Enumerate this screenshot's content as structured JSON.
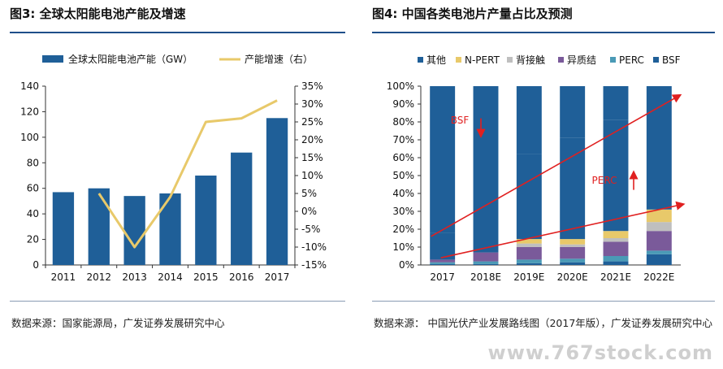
{
  "left": {
    "title": "图3:  全球太阳能电池产能及增速",
    "source": "数据来源：国家能源局，广发证券发展研究中心",
    "chart_data": {
      "type": "bar+line",
      "categories": [
        "2011",
        "2012",
        "2013",
        "2014",
        "2015",
        "2016",
        "2017"
      ],
      "series": [
        {
          "name": "全球太阳能电池产能（GW）",
          "type": "bar",
          "axis": "left",
          "values": [
            57,
            60,
            54,
            56,
            70,
            88,
            115
          ],
          "color": "#1f5f98"
        },
        {
          "name": "产能增速（右）",
          "type": "line",
          "axis": "right",
          "values": [
            null,
            0.05,
            -0.1,
            0.04,
            0.25,
            0.26,
            0.31
          ],
          "color": "#e8c96a"
        }
      ],
      "ylim": [
        0,
        140
      ],
      "yticks": [
        "0",
        "20",
        "40",
        "60",
        "80",
        "100",
        "120",
        "140"
      ],
      "y2lim": [
        -0.15,
        0.35
      ],
      "y2ticks": [
        "-15%",
        "-10%",
        "-5%",
        "0%",
        "5%",
        "10%",
        "15%",
        "20%",
        "25%",
        "30%",
        "35%"
      ],
      "legend": "top"
    }
  },
  "right": {
    "title": "图4:  中国各类电池片产量占比及预测",
    "source": "数据来源：  中国光伏产业发展路线图（2017年版），广发证券发展研究中心",
    "chart_data": {
      "type": "stacked-bar-percent",
      "categories": [
        "2017",
        "2018E",
        "2019E",
        "2020E",
        "2021E",
        "2022E"
      ],
      "series": [
        {
          "name": "BSF",
          "color": "#1f5f98",
          "values": [
            0.005,
            0.005,
            0.01,
            0.015,
            0.02,
            0.06
          ]
        },
        {
          "name": "PERC",
          "color": "#4a9ab6",
          "values": [
            0.01,
            0.015,
            0.02,
            0.02,
            0.03,
            0.02
          ]
        },
        {
          "name": "异质结",
          "color": "#7a5a9a",
          "values": [
            0.015,
            0.05,
            0.07,
            0.065,
            0.08,
            0.11
          ]
        },
        {
          "name": "背接触",
          "color": "#bfbfbf",
          "values": [
            0.0,
            0.0,
            0.02,
            0.015,
            0.02,
            0.05
          ]
        },
        {
          "name": "N-PERT",
          "color": "#e8c96a",
          "values": [
            0.0,
            0.0,
            0.025,
            0.03,
            0.04,
            0.07
          ]
        },
        {
          "name": "其他",
          "color": "#1f5f98",
          "values": [
            0.15,
            0.33,
            0.475,
            0.565,
            0.62,
            0.64
          ]
        },
        {
          "name": "其他",
          "color": "#1f5f98",
          "values": [
            0.82,
            0.6,
            0.38,
            0.29,
            0.19,
            0.05
          ]
        }
      ],
      "legend_order": [
        "其他",
        "N-PERT",
        "背接触",
        "异质结",
        "PERC",
        "BSF"
      ],
      "legend_colors": [
        "#1f5f98",
        "#e8c96a",
        "#bfbfbf",
        "#7a5a9a",
        "#4a9ab6",
        "#1f5f98"
      ],
      "yticks": [
        "0%",
        "10%",
        "20%",
        "30%",
        "40%",
        "50%",
        "60%",
        "70%",
        "80%",
        "90%",
        "100%"
      ],
      "ylim": [
        0,
        1
      ],
      "annotations": [
        {
          "text": "BSF",
          "anchor": [
            0.9,
            0.79
          ]
        },
        {
          "text": "PERC",
          "anchor": [
            4.35,
            0.455
          ]
        }
      ],
      "legend": "top"
    },
    "watermark": "www.767stock.com"
  }
}
